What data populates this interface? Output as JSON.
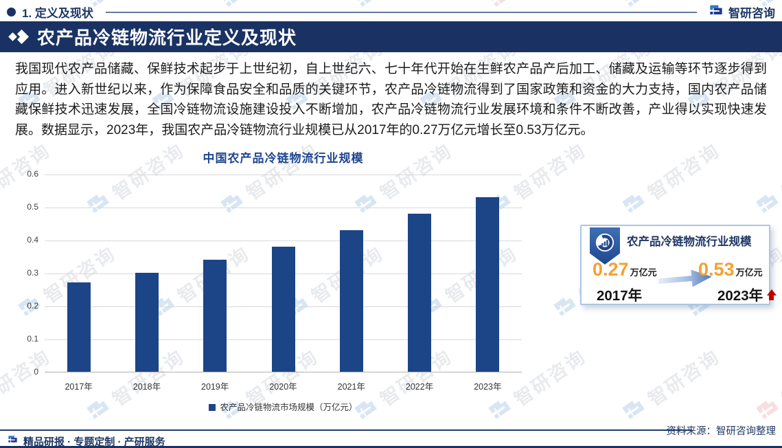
{
  "header": {
    "section_label": "1. 定义及现状",
    "brand_name": "智研咨询"
  },
  "banner": {
    "title": "农产品冷链物流行业定义及现状"
  },
  "intro_paragraph": "我国现代农产品储藏、保鲜技术起步于上世纪初，自上世纪六、七十年代开始在生鲜农产品产后加工、储藏及运输等环节逐步得到应用。进入新世纪以来，作为保障食品安全和品质的关键环节，农产品冷链物流得到了国家政策和资金的大力支持，国内农产品储藏保鲜技术迅速发展，全国冷链物流设施建设投入不断增加，农产品冷链物流行业发展环境和条件不断改善，产业得以实现快速发展。数据显示，2023年，我国农产品冷链物流行业规模已从2017年的0.27万亿元增长至0.53万亿元。",
  "chart_data": {
    "type": "bar",
    "title": "中国农产品冷链物流行业规模",
    "categories": [
      "2017年",
      "2018年",
      "2019年",
      "2020年",
      "2021年",
      "2022年",
      "2023年"
    ],
    "values": [
      0.27,
      0.3,
      0.34,
      0.38,
      0.43,
      0.48,
      0.53
    ],
    "series_name": "农产品冷链物流市场规模（万亿元）",
    "unit": "万亿元",
    "ylim": [
      0,
      0.6
    ],
    "yticks": [
      0,
      0.1,
      0.2,
      0.3,
      0.4,
      0.5,
      0.6
    ],
    "grid": true,
    "legend_position": "bottom",
    "bar_color": "#1c4587"
  },
  "callout": {
    "title": "农产品冷链物流行业规模",
    "start_value": "0.27",
    "start_unit": "万亿元",
    "start_year": "2017年",
    "end_value": "0.53",
    "end_unit": "万亿元",
    "end_year": "2023年"
  },
  "footer": {
    "services": "精品研报 · 专题定制 · 产研服务",
    "source": "资料来源：智研咨询整理"
  },
  "watermark": {
    "text": "智研咨询"
  },
  "colors": {
    "banner_bg": "#1a3263",
    "bar": "#1c4587",
    "accent_navy": "#1f3864",
    "chart_title_blue": "#1f4690",
    "value_orange": "#f5a033",
    "up_arrow_red": "#c00000"
  }
}
